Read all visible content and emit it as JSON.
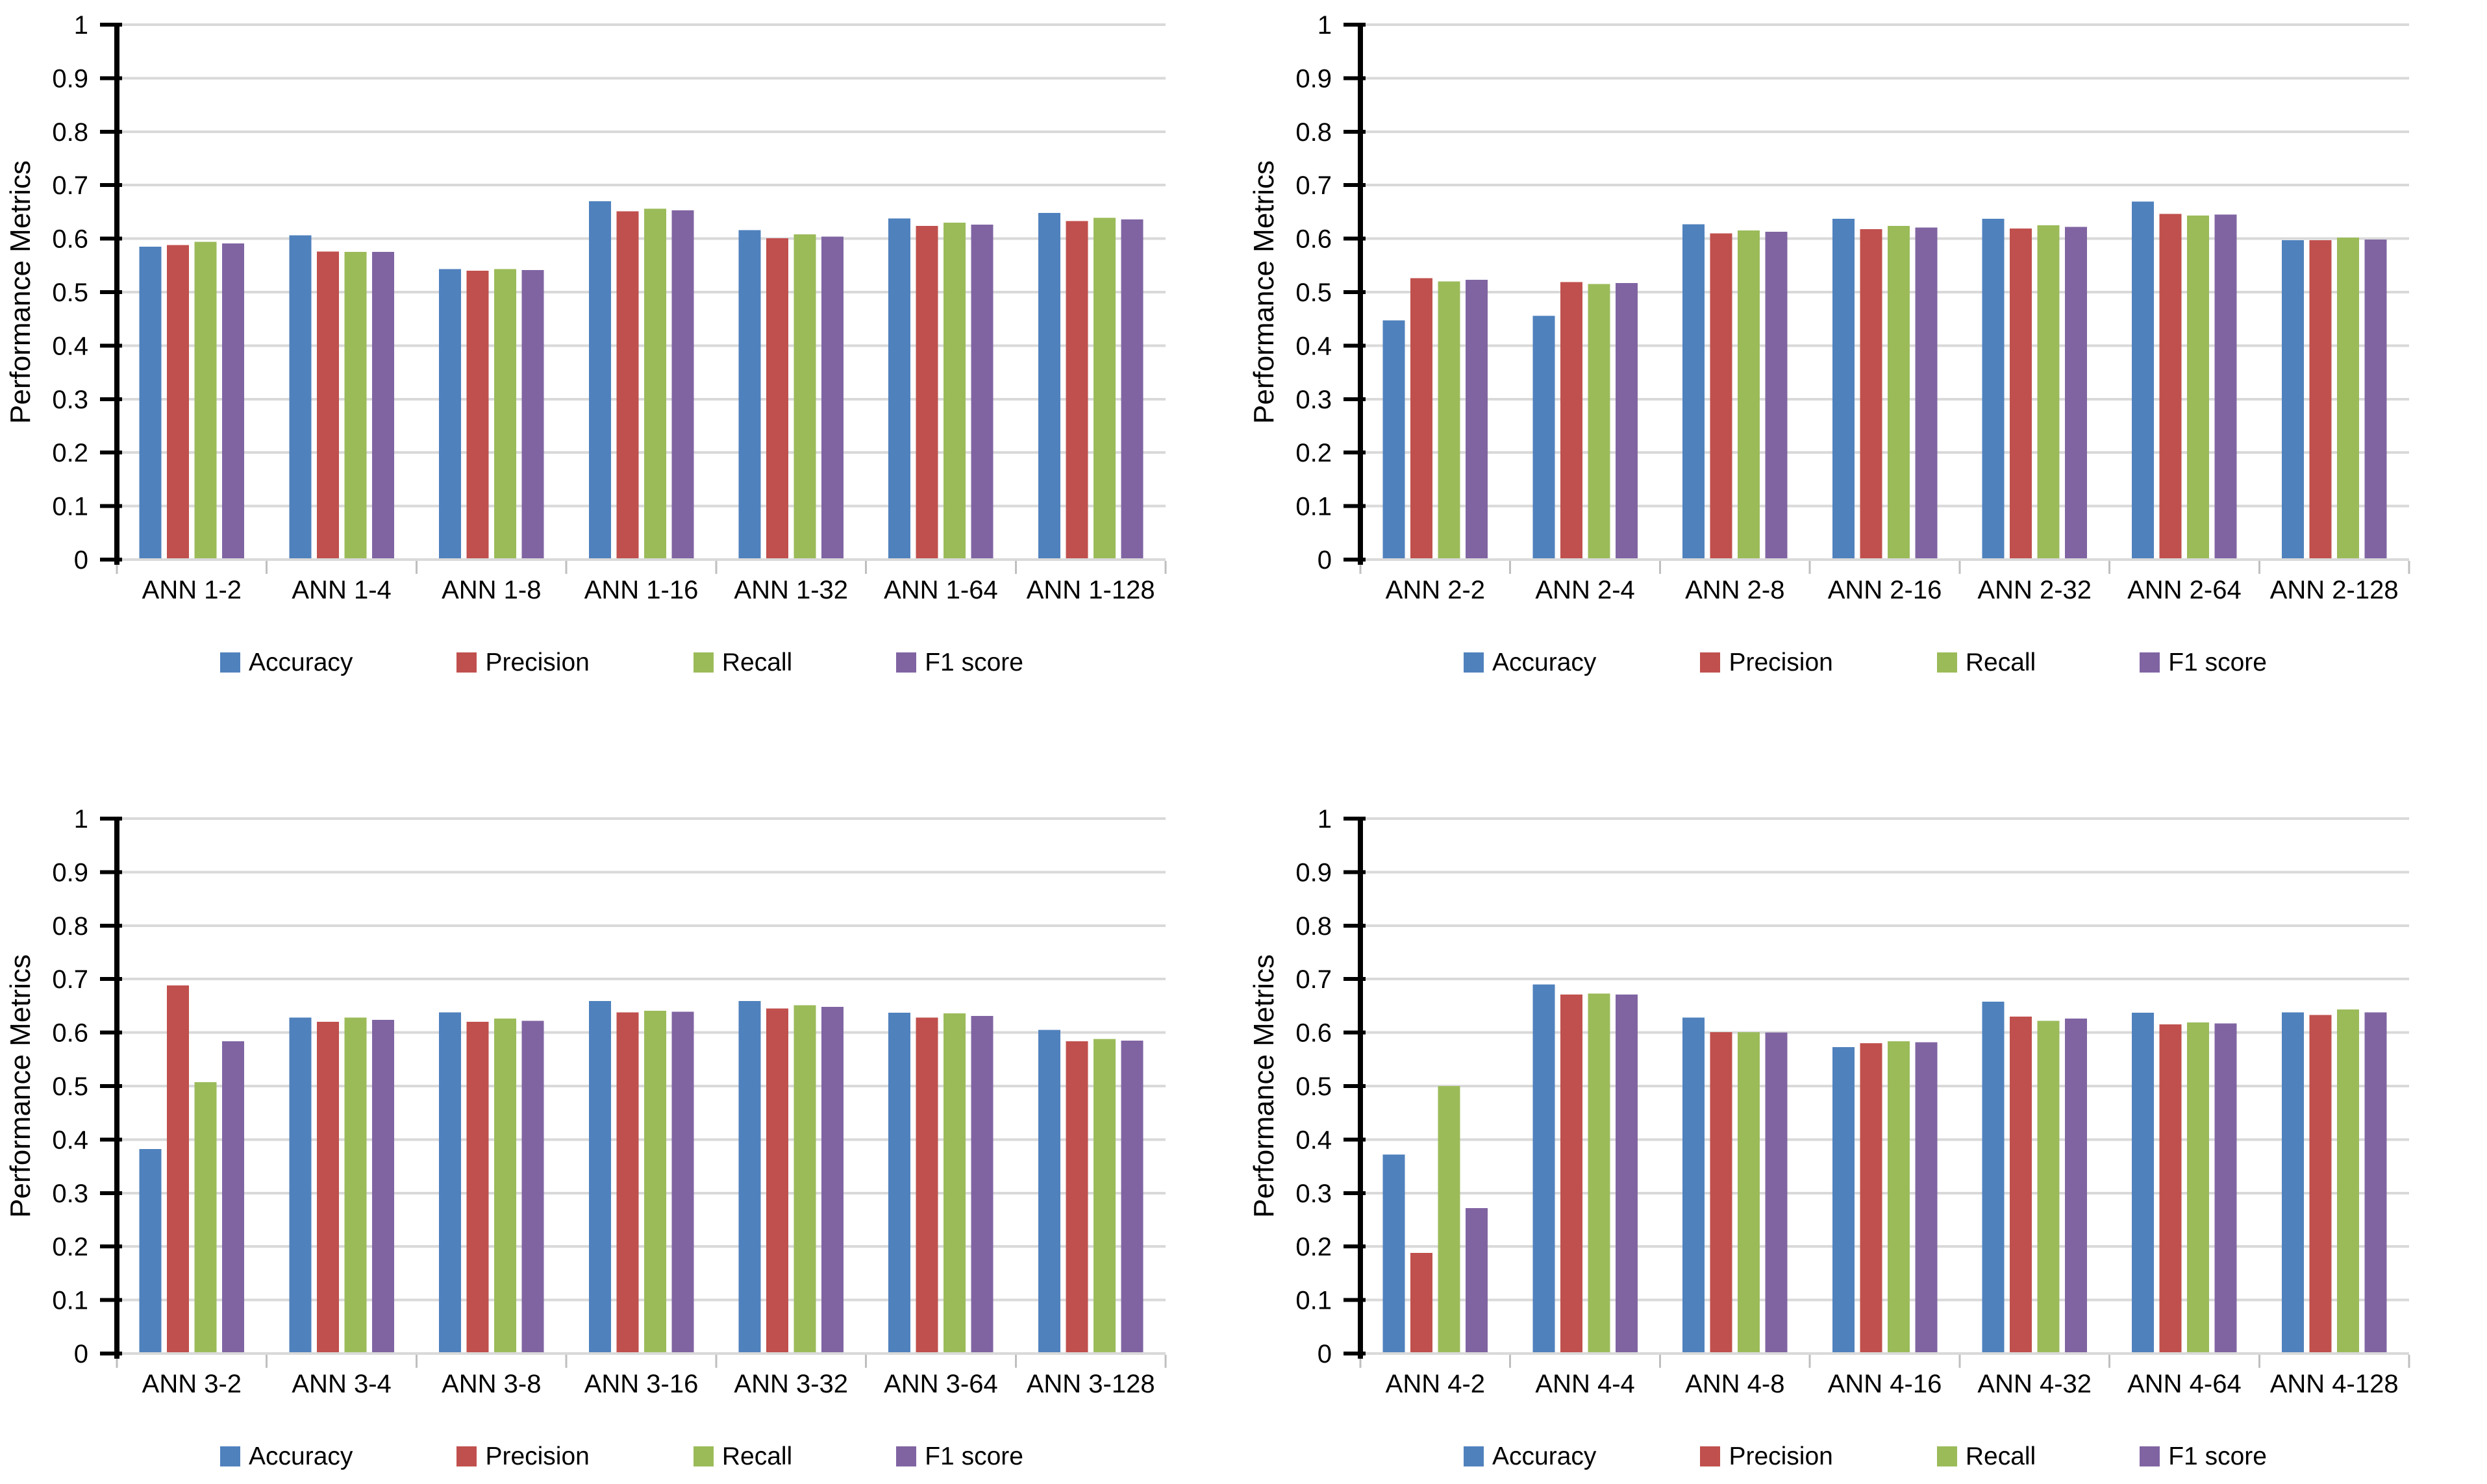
{
  "style": {
    "background": "#FFFFFF",
    "gridline_color": "#D9D9D9",
    "y_axis_color": "#000000",
    "x_axis_color": "#D9D9D9",
    "category_tick_color": "#BFBFBF",
    "text_color": "#000000"
  },
  "legend": {
    "items": [
      {
        "label": "Accuracy",
        "color": "#4F81BD"
      },
      {
        "label": "Precision",
        "color": "#C0504D"
      },
      {
        "label": "Recall",
        "color": "#9BBB59"
      },
      {
        "label": "F1 score",
        "color": "#8064A2"
      }
    ]
  },
  "chart_data": [
    {
      "type": "bar",
      "title": "",
      "xlabel": "",
      "ylabel": "Performance Metrics",
      "ylim": [
        0,
        1
      ],
      "ytick_step": 0.1,
      "yticks": [
        "1",
        "0.9",
        "0.8",
        "0.7",
        "0.6",
        "0.5",
        "0.4",
        "0.3",
        "0.2",
        "0.1",
        "0"
      ],
      "grid": true,
      "legend_position": "bottom",
      "categories": [
        "ANN 1-2",
        "ANN 1-4",
        "ANN 1-8",
        "ANN 1-16",
        "ANN 1-32",
        "ANN 1-64",
        "ANN 1-128"
      ],
      "series": [
        {
          "name": "Accuracy",
          "color": "#4F81BD",
          "values": [
            0.585,
            0.606,
            0.543,
            0.67,
            0.616,
            0.638,
            0.648
          ]
        },
        {
          "name": "Precision",
          "color": "#C0504D",
          "values": [
            0.588,
            0.576,
            0.54,
            0.651,
            0.601,
            0.624,
            0.633
          ]
        },
        {
          "name": "Recall",
          "color": "#9BBB59",
          "values": [
            0.594,
            0.575,
            0.543,
            0.656,
            0.608,
            0.63,
            0.639
          ]
        },
        {
          "name": "F1 score",
          "color": "#8064A2",
          "values": [
            0.591,
            0.575,
            0.541,
            0.653,
            0.604,
            0.626,
            0.636
          ]
        }
      ]
    },
    {
      "type": "bar",
      "title": "",
      "xlabel": "",
      "ylabel": "Performance Metrics",
      "ylim": [
        0,
        1
      ],
      "ytick_step": 0.1,
      "yticks": [
        "1",
        "0.9",
        "0.8",
        "0.7",
        "0.6",
        "0.5",
        "0.4",
        "0.3",
        "0.2",
        "0.1",
        "0"
      ],
      "grid": true,
      "legend_position": "bottom",
      "categories": [
        "ANN 2-2",
        "ANN 2-4",
        "ANN 2-8",
        "ANN 2-16",
        "ANN 2-32",
        "ANN 2-64",
        "ANN 2-128"
      ],
      "series": [
        {
          "name": "Accuracy",
          "color": "#4F81BD",
          "values": [
            0.447,
            0.456,
            0.627,
            0.637,
            0.637,
            0.669,
            0.597
          ]
        },
        {
          "name": "Precision",
          "color": "#C0504D",
          "values": [
            0.526,
            0.519,
            0.61,
            0.618,
            0.619,
            0.646,
            0.597
          ]
        },
        {
          "name": "Recall",
          "color": "#9BBB59",
          "values": [
            0.52,
            0.515,
            0.615,
            0.624,
            0.625,
            0.643,
            0.602
          ]
        },
        {
          "name": "F1 score",
          "color": "#8064A2",
          "values": [
            0.523,
            0.517,
            0.613,
            0.621,
            0.622,
            0.645,
            0.598
          ]
        }
      ]
    },
    {
      "type": "bar",
      "title": "",
      "xlabel": "",
      "ylabel": "Performance Metrics",
      "ylim": [
        0,
        1
      ],
      "ytick_step": 0.1,
      "yticks": [
        "1",
        "0.9",
        "0.8",
        "0.7",
        "0.6",
        "0.5",
        "0.4",
        "0.3",
        "0.2",
        "0.1",
        "0"
      ],
      "grid": true,
      "legend_position": "bottom",
      "categories": [
        "ANN 3-2",
        "ANN 3-4",
        "ANN 3-8",
        "ANN 3-16",
        "ANN 3-32",
        "ANN 3-64",
        "ANN 3-128"
      ],
      "series": [
        {
          "name": "Accuracy",
          "color": "#4F81BD",
          "values": [
            0.382,
            0.628,
            0.638,
            0.659,
            0.659,
            0.637,
            0.605
          ]
        },
        {
          "name": "Precision",
          "color": "#C0504D",
          "values": [
            0.688,
            0.62,
            0.62,
            0.638,
            0.645,
            0.628,
            0.584
          ]
        },
        {
          "name": "Recall",
          "color": "#9BBB59",
          "values": [
            0.507,
            0.628,
            0.626,
            0.641,
            0.651,
            0.636,
            0.588
          ]
        },
        {
          "name": "F1 score",
          "color": "#8064A2",
          "values": [
            0.584,
            0.624,
            0.622,
            0.639,
            0.648,
            0.631,
            0.585
          ]
        }
      ]
    },
    {
      "type": "bar",
      "title": "",
      "xlabel": "",
      "ylabel": "Performance Metrics",
      "ylim": [
        0,
        1
      ],
      "ytick_step": 0.1,
      "yticks": [
        "1",
        "0.9",
        "0.8",
        "0.7",
        "0.6",
        "0.5",
        "0.4",
        "0.3",
        "0.2",
        "0.1",
        "0"
      ],
      "grid": true,
      "legend_position": "bottom",
      "categories": [
        "ANN 4-2",
        "ANN 4-4",
        "ANN 4-8",
        "ANN 4-16",
        "ANN 4-32",
        "ANN 4-64",
        "ANN 4-128"
      ],
      "series": [
        {
          "name": "Accuracy",
          "color": "#4F81BD",
          "values": [
            0.372,
            0.69,
            0.628,
            0.573,
            0.658,
            0.637,
            0.638
          ]
        },
        {
          "name": "Precision",
          "color": "#C0504D",
          "values": [
            0.188,
            0.671,
            0.601,
            0.58,
            0.63,
            0.615,
            0.633
          ]
        },
        {
          "name": "Recall",
          "color": "#9BBB59",
          "values": [
            0.5,
            0.673,
            0.601,
            0.584,
            0.622,
            0.619,
            0.643
          ]
        },
        {
          "name": "F1 score",
          "color": "#8064A2",
          "values": [
            0.272,
            0.671,
            0.6,
            0.582,
            0.626,
            0.617,
            0.638
          ]
        }
      ]
    }
  ]
}
